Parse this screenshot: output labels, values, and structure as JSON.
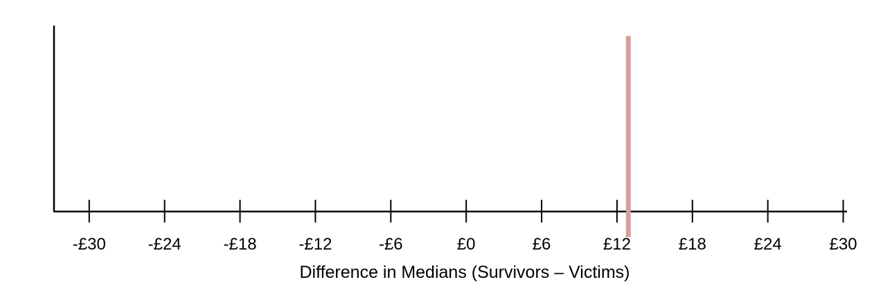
{
  "chart_data": {
    "type": "line",
    "title": "",
    "xlabel": "Difference in Medians (Survivors – Victims)",
    "ylabel": "",
    "grid": false,
    "xlim": [
      -32.8,
      30.3
    ],
    "ticks": [
      {
        "value": -30,
        "label": "-£30"
      },
      {
        "value": -24,
        "label": "-£24"
      },
      {
        "value": -18,
        "label": "-£18"
      },
      {
        "value": -12,
        "label": "-£12"
      },
      {
        "value": -6,
        "label": "-£6"
      },
      {
        "value": 0,
        "label": "£0"
      },
      {
        "value": 6,
        "label": "£6"
      },
      {
        "value": 12,
        "label": "£12"
      },
      {
        "value": 18,
        "label": "£18"
      },
      {
        "value": 24,
        "label": "£24"
      },
      {
        "value": 30,
        "label": "£30"
      }
    ],
    "observed_difference": 12.9,
    "observed_line_color": "#d4a09c",
    "axis_color": "#000000"
  }
}
